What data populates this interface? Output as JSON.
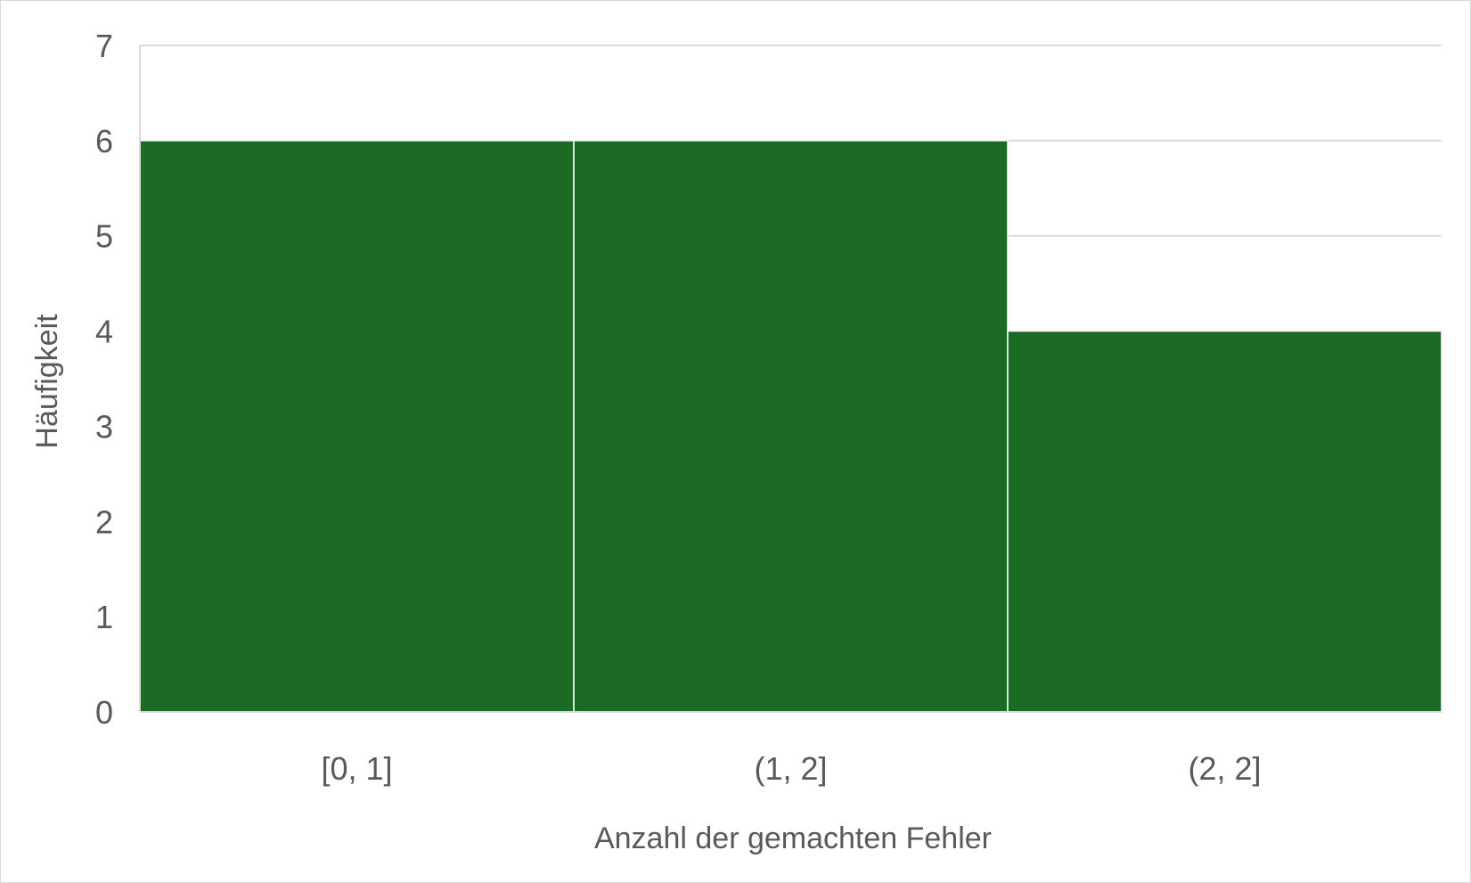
{
  "chart_data": {
    "type": "bar",
    "categories": [
      "[0, 1]",
      "(1, 2]",
      "(2, 2]"
    ],
    "values": [
      6,
      6,
      4
    ],
    "title": "",
    "xlabel": "Anzahl der gemachten Fehler",
    "ylabel": "Häufigkeit",
    "ylim": [
      0,
      7
    ],
    "yticks": [
      "0",
      "1",
      "2",
      "3",
      "4",
      "5",
      "6",
      "7"
    ],
    "grid": "horizontal",
    "legend": "none",
    "bar_color": "#1b6b25",
    "gridline_color": "#d9d9d9",
    "text_color": "#595959"
  }
}
